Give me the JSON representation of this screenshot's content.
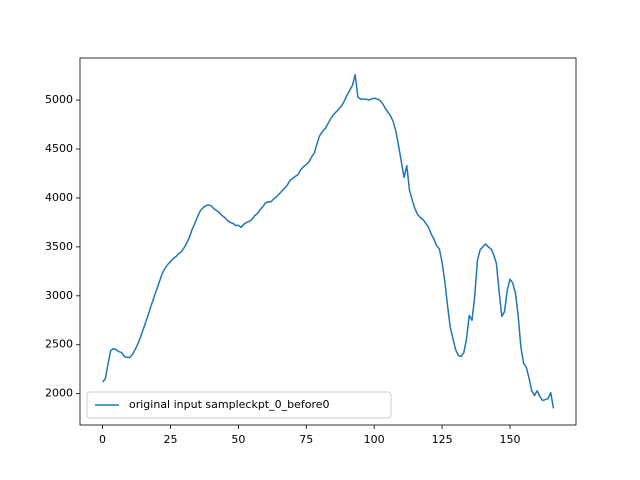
{
  "chart_data": {
    "type": "line",
    "x": [
      0,
      1,
      2,
      3,
      4,
      5,
      6,
      7,
      8,
      9,
      10,
      11,
      12,
      13,
      14,
      15,
      16,
      17,
      18,
      19,
      20,
      21,
      22,
      23,
      24,
      25,
      26,
      27,
      28,
      29,
      30,
      31,
      32,
      33,
      34,
      35,
      36,
      37,
      38,
      39,
      40,
      41,
      42,
      43,
      44,
      45,
      46,
      47,
      48,
      49,
      50,
      51,
      52,
      53,
      54,
      55,
      56,
      57,
      58,
      59,
      60,
      61,
      62,
      63,
      64,
      65,
      66,
      67,
      68,
      69,
      70,
      71,
      72,
      73,
      74,
      75,
      76,
      77,
      78,
      79,
      80,
      81,
      82,
      83,
      84,
      85,
      86,
      87,
      88,
      89,
      90,
      91,
      92,
      93,
      94,
      95,
      96,
      97,
      98,
      99,
      100,
      101,
      102,
      103,
      104,
      105,
      106,
      107,
      108,
      109,
      110,
      111,
      112,
      113,
      114,
      115,
      116,
      117,
      118,
      119,
      120,
      121,
      122,
      123,
      124,
      125,
      126,
      127,
      128,
      129,
      130,
      131,
      132,
      133,
      134,
      135,
      136,
      137,
      138,
      139,
      140,
      141,
      142,
      143,
      144,
      145,
      146,
      147,
      148,
      149,
      150,
      151,
      152,
      153,
      154,
      155,
      156,
      157,
      158,
      159,
      160,
      161,
      162,
      163,
      164,
      165,
      166
    ],
    "series": [
      {
        "name": "original input sampleckpt_0_before0",
        "color": "#1f77b4",
        "values": [
          2120,
          2150,
          2300,
          2440,
          2460,
          2450,
          2430,
          2420,
          2380,
          2370,
          2370,
          2400,
          2450,
          2510,
          2580,
          2660,
          2740,
          2820,
          2910,
          2990,
          3070,
          3150,
          3230,
          3280,
          3320,
          3350,
          3380,
          3400,
          3430,
          3450,
          3490,
          3540,
          3600,
          3680,
          3740,
          3810,
          3870,
          3900,
          3920,
          3930,
          3920,
          3890,
          3870,
          3850,
          3820,
          3800,
          3770,
          3750,
          3740,
          3720,
          3720,
          3700,
          3730,
          3750,
          3760,
          3780,
          3820,
          3840,
          3880,
          3910,
          3950,
          3960,
          3960,
          3990,
          4010,
          4040,
          4070,
          4100,
          4130,
          4180,
          4200,
          4220,
          4240,
          4290,
          4320,
          4340,
          4370,
          4420,
          4460,
          4560,
          4640,
          4680,
          4710,
          4760,
          4810,
          4850,
          4880,
          4910,
          4940,
          4990,
          5050,
          5100,
          5150,
          5260,
          5030,
          5010,
          5010,
          5010,
          5000,
          5010,
          5020,
          5010,
          5000,
          4970,
          4920,
          4880,
          4840,
          4780,
          4680,
          4530,
          4370,
          4210,
          4330,
          4080,
          3980,
          3890,
          3830,
          3800,
          3780,
          3740,
          3700,
          3630,
          3580,
          3510,
          3480,
          3340,
          3150,
          2900,
          2680,
          2560,
          2450,
          2390,
          2380,
          2420,
          2560,
          2800,
          2750,
          2990,
          3360,
          3470,
          3500,
          3530,
          3500,
          3480,
          3420,
          3330,
          3040,
          2790,
          2840,
          3060,
          3170,
          3130,
          3030,
          2800,
          2480,
          2310,
          2270,
          2160,
          2030,
          1980,
          2030,
          1970,
          1930,
          1940,
          1950,
          2010,
          1850
        ]
      }
    ],
    "xlim": [
      -8.3,
      174.3
    ],
    "ylim": [
      1680,
      5430
    ],
    "xticks": [
      0,
      25,
      50,
      75,
      100,
      125,
      150
    ],
    "yticks": [
      2000,
      2500,
      3000,
      3500,
      4000,
      4500,
      5000
    ],
    "legend": "lower left"
  }
}
